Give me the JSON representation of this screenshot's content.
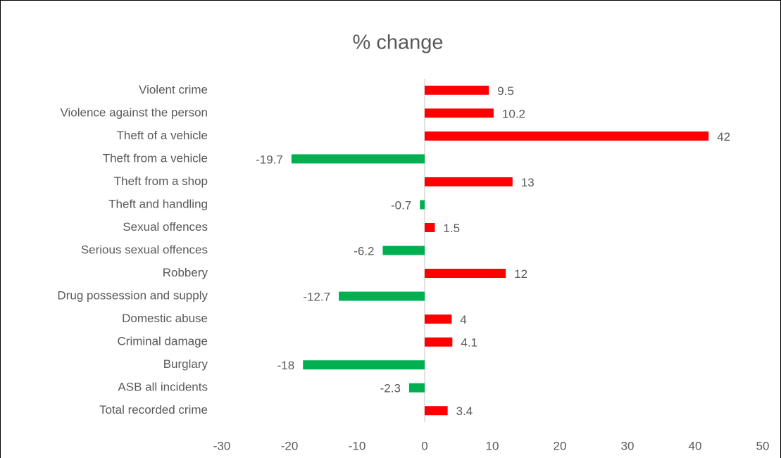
{
  "chart_data": {
    "type": "bar",
    "orientation": "horizontal",
    "title": "% change",
    "categories": [
      "Violent crime",
      "Violence against the person",
      "Theft of a vehicle",
      "Theft from a vehicle",
      "Theft from a shop",
      "Theft and handling",
      "Sexual offences",
      "Serious sexual offences",
      "Robbery",
      "Drug possession and supply",
      "Domestic abuse",
      "Criminal damage",
      "Burglary",
      "ASB all incidents",
      "Total recorded crime"
    ],
    "values": [
      9.5,
      10.2,
      42,
      -19.7,
      13,
      -0.7,
      1.5,
      -6.2,
      12,
      -12.7,
      4,
      4.1,
      -18,
      -2.3,
      3.4
    ],
    "color": "#ff0000",
    "negative_color": "#00b050",
    "xlim": [
      -30,
      50
    ],
    "xticks": [
      -30,
      -20,
      -10,
      0,
      10,
      20,
      30,
      40,
      50
    ],
    "grid": false
  }
}
